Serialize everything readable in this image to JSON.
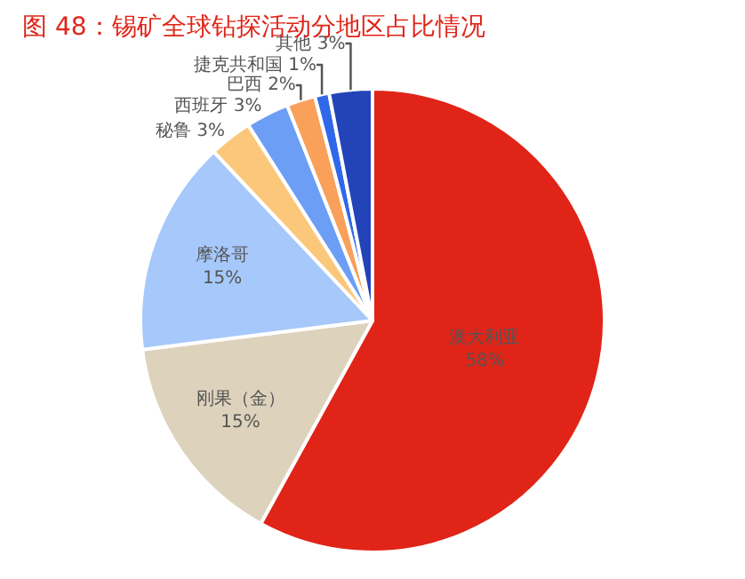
{
  "chart_data": {
    "type": "pie",
    "title": "图 48：锡矿全球钻探活动分地区占比情况",
    "categories": [
      "澳大利亚",
      "刚果（金）",
      "摩洛哥",
      "秘鲁",
      "西班牙",
      "巴西",
      "捷克共和国",
      "其他"
    ],
    "values": [
      58,
      15,
      15,
      3,
      3,
      2,
      1,
      3
    ],
    "value_labels": [
      "58%",
      "15%",
      "15%",
      "3%",
      "3%",
      "2%",
      "1%",
      "3%"
    ],
    "colors": [
      "#e02418",
      "#ddd3bd",
      "#a6c8fa",
      "#fbc77a",
      "#6d9ef5",
      "#f9a05a",
      "#2f68e8",
      "#2343b8"
    ],
    "legend": false
  }
}
